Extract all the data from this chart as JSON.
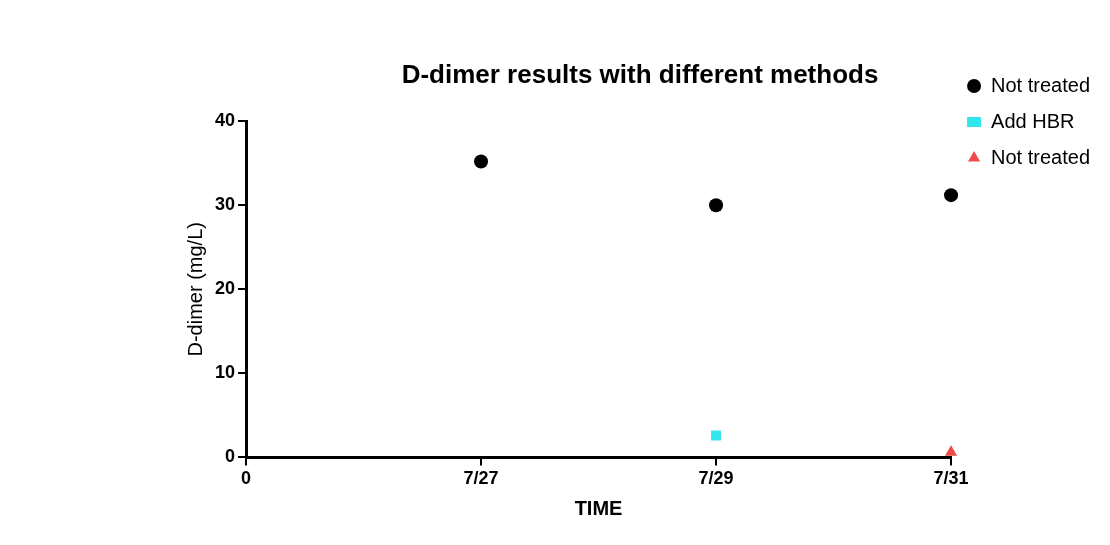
{
  "chart_data": {
    "type": "scatter",
    "title": "D-dimer results with different methods",
    "xlabel": "TIME",
    "ylabel": "D-dimer (mg/L)",
    "categories": [
      "0",
      "7/27",
      "7/29",
      "7/31"
    ],
    "ylim": [
      0,
      40
    ],
    "yticks": [
      0,
      10,
      20,
      30,
      40
    ],
    "grid": false,
    "legend": "right",
    "series": [
      {
        "name": "Not treated",
        "color": "#000000",
        "marker": "circle",
        "values": [
          null,
          35.2,
          30,
          31.2
        ]
      },
      {
        "name": "Add HBR",
        "color": "#33e6ee",
        "marker": "square",
        "values": [
          null,
          null,
          2.6,
          null
        ]
      },
      {
        "name": "Not treated",
        "color": "#f04a4a",
        "marker": "triangle",
        "values": [
          null,
          null,
          null,
          0.6
        ]
      }
    ]
  }
}
